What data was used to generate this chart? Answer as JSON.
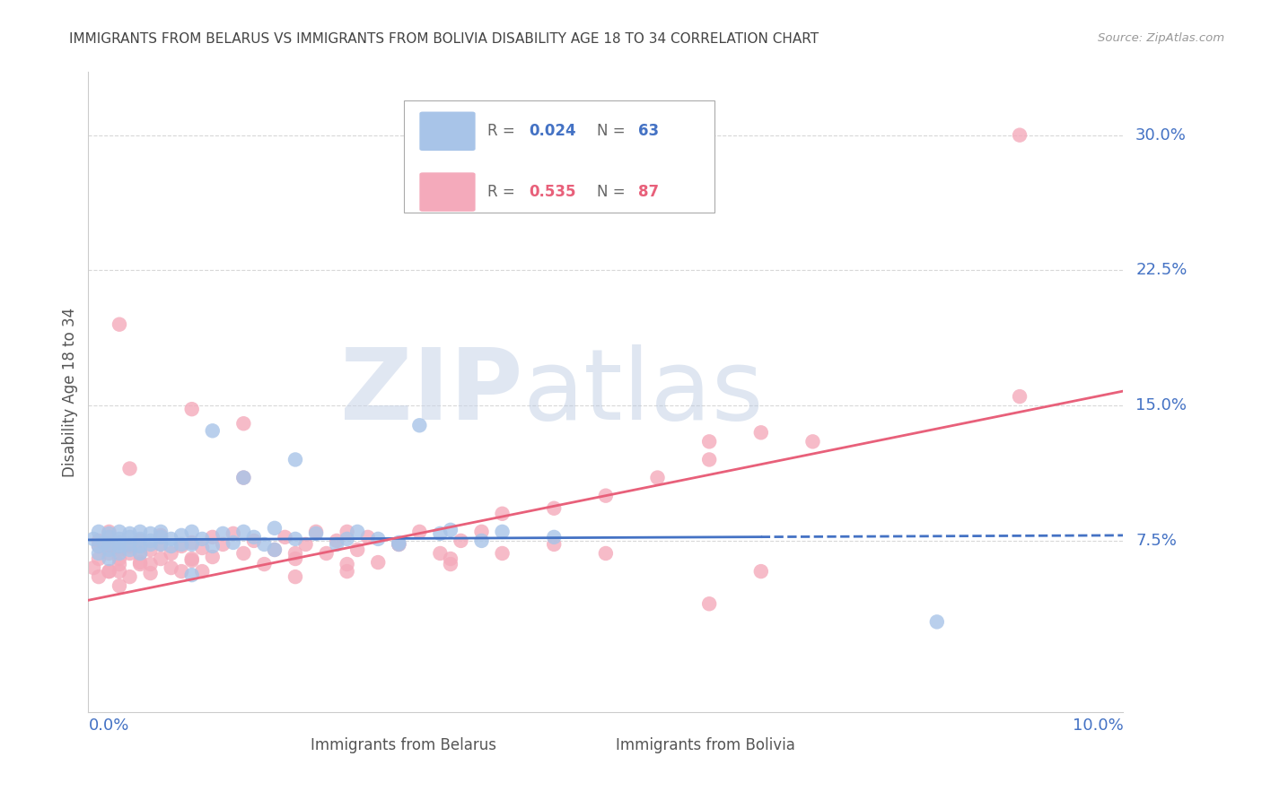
{
  "title": "IMMIGRANTS FROM BELARUS VS IMMIGRANTS FROM BOLIVIA DISABILITY AGE 18 TO 34 CORRELATION CHART",
  "source": "Source: ZipAtlas.com",
  "ylabel": "Disability Age 18 to 34",
  "ytick_labels": [
    "7.5%",
    "15.0%",
    "22.5%",
    "30.0%"
  ],
  "ytick_values": [
    0.075,
    0.15,
    0.225,
    0.3
  ],
  "xlim": [
    0.0,
    0.1
  ],
  "ylim": [
    -0.02,
    0.335
  ],
  "series_belarus": {
    "name": "Immigrants from Belarus",
    "R": "0.024",
    "N": "63",
    "dot_color": "#a8c4e8",
    "trend_color": "#4472c4",
    "trend_x": [
      0.0,
      0.1
    ],
    "trend_y": [
      0.0755,
      0.078
    ]
  },
  "series_bolivia": {
    "name": "Immigrants from Bolivia",
    "R": "0.535",
    "N": "87",
    "dot_color": "#f4aabb",
    "trend_color": "#e8607a",
    "trend_x": [
      0.0,
      0.1
    ],
    "trend_y": [
      0.042,
      0.158
    ]
  },
  "belarus_x": [
    0.0005,
    0.001,
    0.001,
    0.001,
    0.0015,
    0.002,
    0.002,
    0.002,
    0.002,
    0.002,
    0.003,
    0.003,
    0.003,
    0.003,
    0.003,
    0.004,
    0.004,
    0.004,
    0.004,
    0.005,
    0.005,
    0.005,
    0.005,
    0.006,
    0.006,
    0.006,
    0.007,
    0.007,
    0.007,
    0.008,
    0.008,
    0.009,
    0.009,
    0.01,
    0.01,
    0.011,
    0.012,
    0.013,
    0.014,
    0.015,
    0.016,
    0.017,
    0.018,
    0.02,
    0.022,
    0.024,
    0.026,
    0.028,
    0.03,
    0.032,
    0.034,
    0.038,
    0.04,
    0.045,
    0.02,
    0.025,
    0.03,
    0.035,
    0.015,
    0.012,
    0.018,
    0.01,
    0.082
  ],
  "belarus_y": [
    0.076,
    0.072,
    0.08,
    0.068,
    0.074,
    0.079,
    0.073,
    0.07,
    0.077,
    0.065,
    0.076,
    0.072,
    0.08,
    0.068,
    0.074,
    0.077,
    0.073,
    0.07,
    0.079,
    0.076,
    0.072,
    0.08,
    0.068,
    0.075,
    0.073,
    0.079,
    0.077,
    0.073,
    0.08,
    0.076,
    0.072,
    0.078,
    0.073,
    0.08,
    0.073,
    0.076,
    0.072,
    0.079,
    0.074,
    0.08,
    0.077,
    0.073,
    0.07,
    0.076,
    0.079,
    0.073,
    0.08,
    0.076,
    0.073,
    0.139,
    0.079,
    0.075,
    0.08,
    0.077,
    0.12,
    0.076,
    0.074,
    0.081,
    0.11,
    0.136,
    0.082,
    0.056,
    0.03
  ],
  "bolivia_x": [
    0.0005,
    0.001,
    0.001,
    0.001,
    0.002,
    0.002,
    0.002,
    0.002,
    0.003,
    0.003,
    0.003,
    0.003,
    0.004,
    0.004,
    0.004,
    0.005,
    0.005,
    0.005,
    0.006,
    0.006,
    0.006,
    0.007,
    0.007,
    0.007,
    0.008,
    0.008,
    0.009,
    0.009,
    0.01,
    0.01,
    0.011,
    0.011,
    0.012,
    0.012,
    0.013,
    0.014,
    0.015,
    0.016,
    0.017,
    0.018,
    0.019,
    0.02,
    0.021,
    0.022,
    0.023,
    0.024,
    0.025,
    0.026,
    0.027,
    0.028,
    0.03,
    0.032,
    0.034,
    0.036,
    0.038,
    0.04,
    0.045,
    0.05,
    0.055,
    0.06,
    0.065,
    0.07,
    0.035,
    0.04,
    0.045,
    0.05,
    0.06,
    0.03,
    0.035,
    0.025,
    0.02,
    0.015,
    0.02,
    0.025,
    0.015,
    0.01,
    0.01,
    0.005,
    0.003,
    0.002,
    0.06,
    0.065,
    0.09,
    0.001,
    0.003,
    0.004,
    0.09
  ],
  "bolivia_y": [
    0.06,
    0.055,
    0.075,
    0.065,
    0.058,
    0.072,
    0.068,
    0.08,
    0.062,
    0.07,
    0.065,
    0.058,
    0.072,
    0.068,
    0.055,
    0.063,
    0.075,
    0.068,
    0.07,
    0.062,
    0.057,
    0.073,
    0.065,
    0.078,
    0.068,
    0.06,
    0.072,
    0.058,
    0.074,
    0.064,
    0.071,
    0.058,
    0.077,
    0.066,
    0.073,
    0.079,
    0.068,
    0.075,
    0.062,
    0.07,
    0.077,
    0.065,
    0.073,
    0.08,
    0.068,
    0.075,
    0.062,
    0.07,
    0.077,
    0.063,
    0.073,
    0.08,
    0.068,
    0.075,
    0.08,
    0.09,
    0.093,
    0.1,
    0.11,
    0.12,
    0.135,
    0.13,
    0.062,
    0.068,
    0.073,
    0.068,
    0.04,
    0.073,
    0.065,
    0.08,
    0.068,
    0.14,
    0.055,
    0.058,
    0.11,
    0.148,
    0.065,
    0.062,
    0.05,
    0.058,
    0.13,
    0.058,
    0.3,
    0.072,
    0.195,
    0.115,
    0.155
  ],
  "watermark_left": "ZIP",
  "watermark_right": "atlas",
  "background_color": "#ffffff",
  "grid_color": "#d8d8d8",
  "title_color": "#444444",
  "right_label_color": "#4472c4",
  "source_color": "#999999",
  "ylabel_color": "#555555"
}
